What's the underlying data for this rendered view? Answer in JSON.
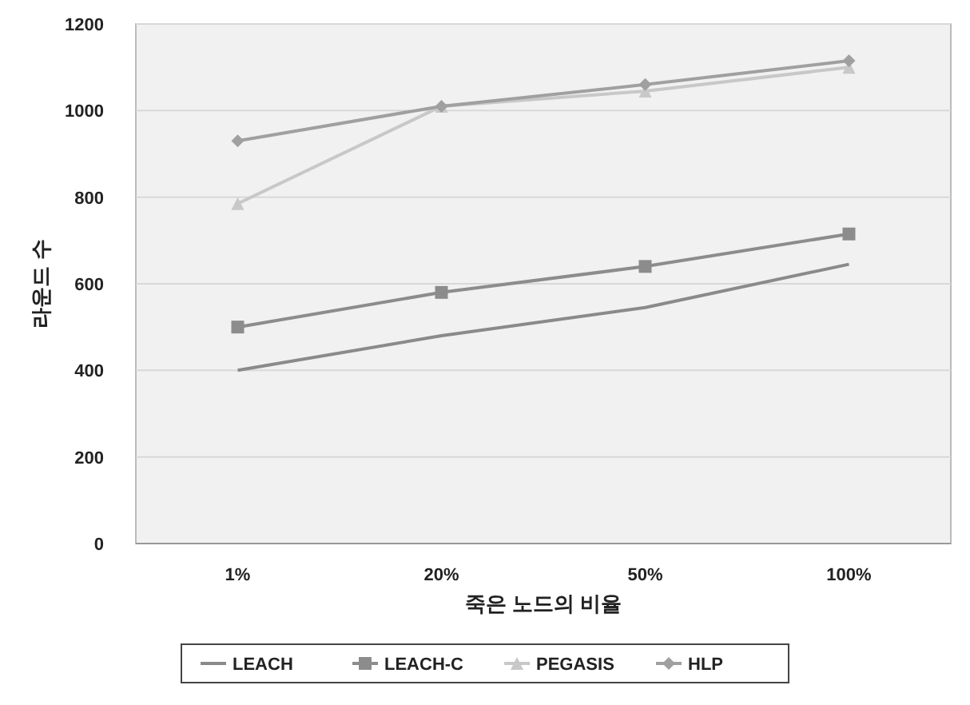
{
  "chart_data": {
    "type": "line",
    "xlabel": "죽은 노드의 비율",
    "ylabel": "라운드 수",
    "categories": [
      "1%",
      "20%",
      "50%",
      "100%"
    ],
    "series": [
      {
        "name": "LEACH",
        "color": "#8a8a8a",
        "marker": "none",
        "values": [
          400,
          480,
          545,
          645
        ]
      },
      {
        "name": "LEACH-C",
        "color": "#8c8c8c",
        "marker": "square",
        "values": [
          500,
          580,
          640,
          715
        ]
      },
      {
        "name": "PEGASIS",
        "color": "#c8c8c8",
        "marker": "triangle",
        "values": [
          785,
          1010,
          1045,
          1100
        ]
      },
      {
        "name": "HLP",
        "color": "#a0a0a0",
        "marker": "diamond",
        "values": [
          930,
          1010,
          1060,
          1115
        ]
      }
    ],
    "ylim": [
      0,
      1200
    ],
    "yticks": [
      0,
      200,
      400,
      600,
      800,
      1000,
      1200
    ],
    "grid": "y",
    "legend": "bottom"
  }
}
